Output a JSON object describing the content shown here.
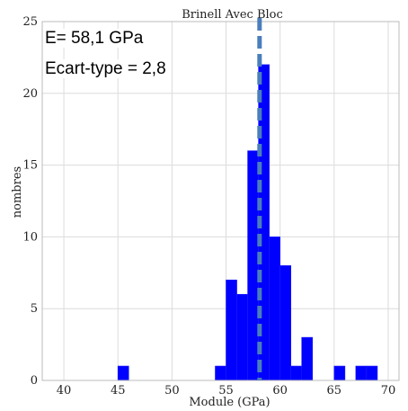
{
  "chart_data": {
    "type": "bar",
    "title": "Brinell Avec Bloc",
    "xlabel": "Module (GPa)",
    "ylabel": "nombres",
    "xlim": [
      38,
      71
    ],
    "ylim": [
      0,
      25
    ],
    "xticks": [
      40,
      45,
      50,
      55,
      60,
      65,
      70
    ],
    "yticks": [
      0,
      5,
      10,
      15,
      20,
      25
    ],
    "grid": true,
    "bar_color": "#0000ff",
    "bins": [
      {
        "x0": 45.0,
        "x1": 46.0,
        "count": 1
      },
      {
        "x0": 54.0,
        "x1": 55.0,
        "count": 1
      },
      {
        "x0": 55.0,
        "x1": 56.0,
        "count": 7
      },
      {
        "x0": 56.0,
        "x1": 57.0,
        "count": 6
      },
      {
        "x0": 57.0,
        "x1": 58.0,
        "count": 16
      },
      {
        "x0": 58.0,
        "x1": 59.0,
        "count": 22
      },
      {
        "x0": 59.0,
        "x1": 60.0,
        "count": 10
      },
      {
        "x0": 60.0,
        "x1": 61.0,
        "count": 8
      },
      {
        "x0": 61.0,
        "x1": 62.0,
        "count": 1
      },
      {
        "x0": 62.0,
        "x1": 63.0,
        "count": 3
      },
      {
        "x0": 65.0,
        "x1": 66.0,
        "count": 1
      },
      {
        "x0": 67.0,
        "x1": 68.0,
        "count": 1
      },
      {
        "x0": 68.0,
        "x1": 69.0,
        "count": 1
      }
    ],
    "mean_line": {
      "x": 58.1,
      "color": "#4a7ebb",
      "style": "dashed"
    },
    "annotations": {
      "mean_text": "E= 58,1 GPa",
      "std_text": "Ecart-type = 2,8"
    }
  }
}
